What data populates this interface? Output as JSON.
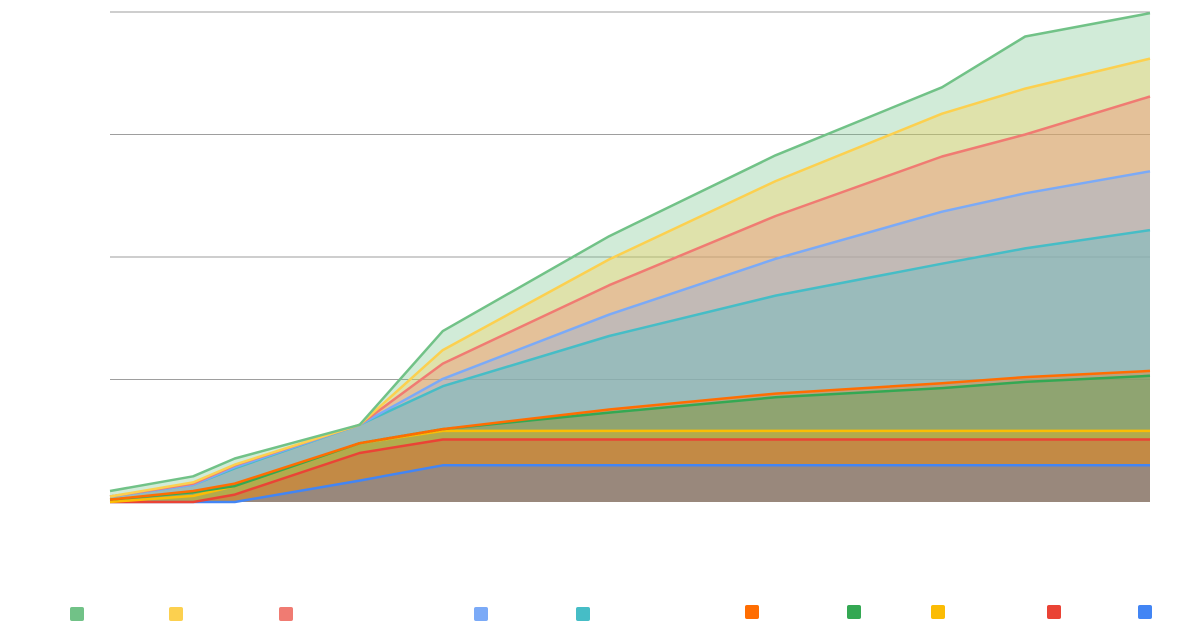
{
  "chart_data": {
    "type": "area",
    "stacked": true,
    "x": [
      0,
      2,
      3,
      6,
      8,
      12,
      16,
      20,
      22,
      25
    ],
    "ylim": [
      0,
      8
    ],
    "grid": true,
    "legend": "bottom",
    "series": [
      {
        "color": "#4285F4",
        "values": [
          0.0,
          0.0,
          0.0,
          0.35,
          0.6,
          0.6,
          0.6,
          0.6,
          0.6,
          0.6
        ]
      },
      {
        "color": "#EA4335",
        "values": [
          0.0,
          0.0,
          0.12,
          0.45,
          0.42,
          0.42,
          0.42,
          0.42,
          0.42,
          0.42
        ]
      },
      {
        "color": "#FBBC04",
        "values": [
          0.0,
          0.1,
          0.14,
          0.16,
          0.14,
          0.14,
          0.14,
          0.14,
          0.14,
          0.14
        ]
      },
      {
        "color": "#34A853",
        "values": [
          0.04,
          0.06,
          0.0,
          0.0,
          0.03,
          0.3,
          0.55,
          0.7,
          0.8,
          0.9
        ]
      },
      {
        "color": "#FF6D01",
        "values": [
          0.0,
          0.02,
          0.04,
          0.0,
          0.0,
          0.05,
          0.06,
          0.08,
          0.08,
          0.08
        ]
      },
      {
        "color": "#46BDC6",
        "values": [
          0.05,
          0.1,
          0.25,
          0.3,
          0.7,
          1.2,
          1.6,
          1.95,
          2.1,
          2.3
        ]
      },
      {
        "color": "#7BAAF7",
        "values": [
          0.0,
          0.0,
          0.02,
          0.0,
          0.12,
          0.35,
          0.6,
          0.85,
          0.9,
          0.96
        ]
      },
      {
        "color": "#F07B72",
        "values": [
          0.0,
          0.02,
          0.03,
          0.0,
          0.25,
          0.48,
          0.7,
          0.9,
          0.96,
          1.22
        ]
      },
      {
        "color": "#FCD04F",
        "values": [
          0.0,
          0.02,
          0.01,
          0.0,
          0.22,
          0.42,
          0.57,
          0.7,
          0.75,
          0.62
        ]
      },
      {
        "color": "#71C287",
        "values": [
          0.09,
          0.1,
          0.1,
          0.0,
          0.31,
          0.38,
          0.42,
          0.43,
          0.85,
          0.74
        ]
      }
    ]
  }
}
